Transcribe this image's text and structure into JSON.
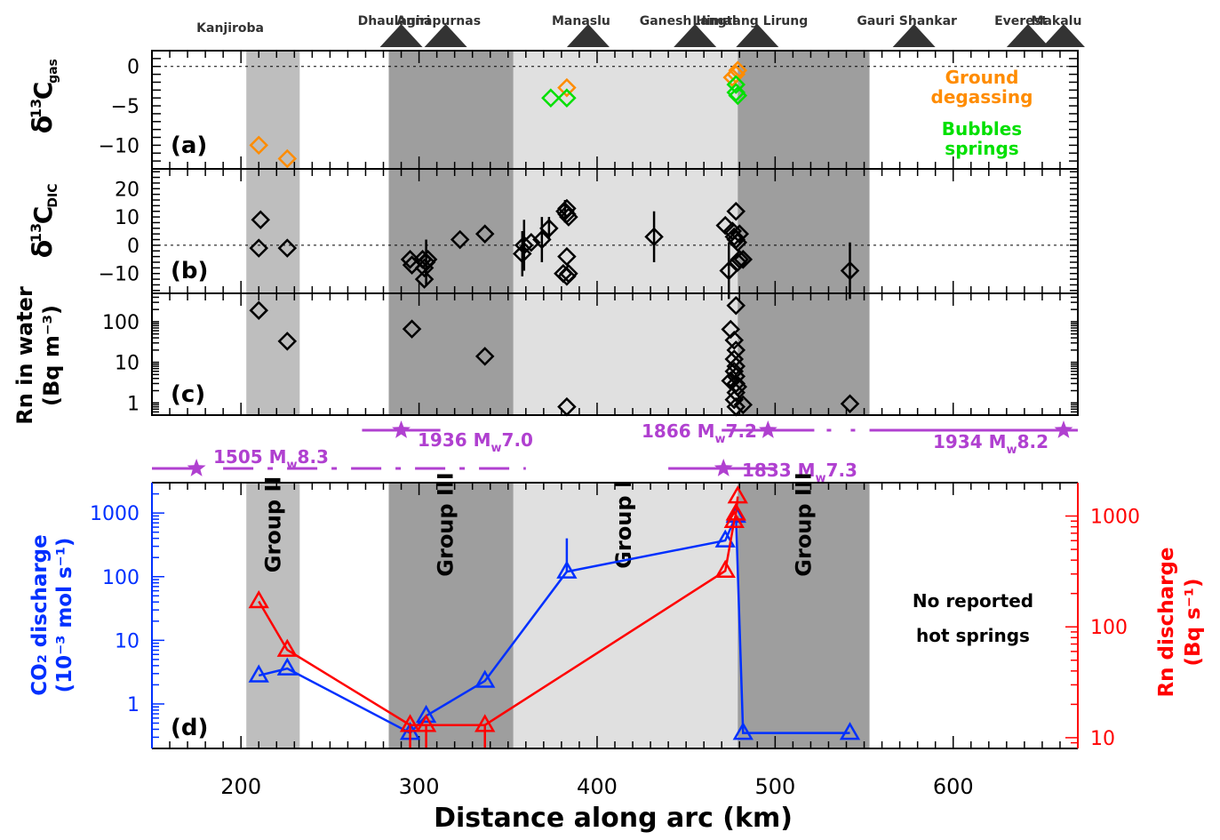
{
  "chart_data": {
    "type": "scatter",
    "xlabel": "Distance along arc (km)",
    "x_ticks": [
      "200",
      "300",
      "400",
      "500",
      "600"
    ],
    "xlim": [
      150,
      670
    ],
    "colors": {
      "ground_degassing": "#ff8c00",
      "bubbles_springs": "#00e000",
      "co2": "#0030ff",
      "rn": "#ff0000",
      "quake": "#b040d0",
      "band_light": "#e0e0e0",
      "band_mid": "#bebebe",
      "band_dark": "#9e9e9e",
      "mountain": "#333333"
    },
    "mountains": [
      {
        "name": "Kanjiroba",
        "x": 175,
        "peak": false
      },
      {
        "name": "Dhaulagiri",
        "x": 290,
        "peak": true
      },
      {
        "name": "Annapurnas",
        "x": 315,
        "peak": true
      },
      {
        "name": "Manaslu",
        "x": 395,
        "peak": true
      },
      {
        "name": "Ganesh Himal",
        "x": 455,
        "peak": true
      },
      {
        "name": "Langtang Lirung",
        "x": 490,
        "peak": true
      },
      {
        "name": "Gauri Shankar",
        "x": 578,
        "peak": true
      },
      {
        "name": "Everest",
        "x": 642,
        "peak": true
      },
      {
        "name": "Makalu",
        "x": 662,
        "peak": true
      }
    ],
    "bands": [
      {
        "x0": 203,
        "x1": 233,
        "shade": "mid"
      },
      {
        "x0": 283,
        "x1": 353,
        "shade": "dark"
      },
      {
        "x0": 353,
        "x1": 479,
        "shade": "light"
      },
      {
        "x0": 479,
        "x1": 553,
        "shade": "dark"
      }
    ],
    "groups": [
      {
        "label": "Group II",
        "x": 218
      },
      {
        "label": "Group III",
        "x": 315
      },
      {
        "label": "Group I",
        "x": 415
      },
      {
        "label": "Group III",
        "x": 516
      }
    ],
    "panel_a": {
      "panel_label": "(a)",
      "ylabel_main": "δ",
      "ylabel_sup": "13",
      "ylabel_sub": "C",
      "ylabel_subscript": "gas",
      "y_ticks": [
        "0",
        "−5",
        "−10"
      ],
      "ylim": [
        -13,
        2
      ],
      "ground_degassing_label_1": "Ground",
      "ground_degassing_label_2": "degassing",
      "bubbles_label_1": "Bubbles",
      "bubbles_label_2": "springs",
      "ground_degassing": [
        [
          210,
          -10
        ],
        [
          226,
          -11.7
        ],
        [
          383,
          -2.7
        ],
        [
          476,
          -1.4
        ],
        [
          479,
          -0.5
        ],
        [
          478,
          -1.0
        ]
      ],
      "bubbles": [
        [
          374,
          -4.0
        ],
        [
          383,
          -4.0
        ],
        [
          478,
          -2.3
        ],
        [
          478,
          -3.3
        ],
        [
          479,
          -3.7
        ]
      ]
    },
    "panel_b": {
      "panel_label": "(b)",
      "ylabel_main": "δ",
      "ylabel_sup": "13",
      "ylabel_sub": "C",
      "ylabel_subscript": "DIC",
      "y_ticks": [
        "20",
        "10",
        "0",
        "−10"
      ],
      "ylim": [
        -17,
        27
      ],
      "points": [
        [
          211,
          9,
          0
        ],
        [
          210,
          -1,
          0
        ],
        [
          226,
          -1,
          0
        ],
        [
          295,
          -5,
          0
        ],
        [
          296,
          -7,
          0
        ],
        [
          302,
          -5,
          0
        ],
        [
          303,
          -8,
          0
        ],
        [
          304,
          -6,
          8
        ],
        [
          305,
          -5,
          0
        ],
        [
          303,
          -12,
          0
        ],
        [
          323,
          2,
          0
        ],
        [
          337,
          4,
          0
        ],
        [
          358,
          -3,
          8
        ],
        [
          359,
          0,
          9
        ],
        [
          363,
          1,
          0
        ],
        [
          369,
          2,
          8
        ],
        [
          373,
          6,
          4
        ],
        [
          382,
          12,
          4
        ],
        [
          383,
          11,
          0
        ],
        [
          384,
          10,
          0
        ],
        [
          383,
          13,
          0
        ],
        [
          383,
          -4,
          0
        ],
        [
          381,
          -10,
          0
        ],
        [
          383,
          -11,
          0
        ],
        [
          384,
          -10,
          0
        ],
        [
          432,
          3,
          9
        ],
        [
          472,
          7,
          0
        ],
        [
          474,
          -9,
          10
        ],
        [
          476,
          5,
          0
        ],
        [
          478,
          12,
          0
        ],
        [
          477,
          3,
          0
        ],
        [
          478,
          2,
          0
        ],
        [
          479,
          1,
          0
        ],
        [
          480,
          4,
          0
        ],
        [
          479,
          -6,
          0
        ],
        [
          480,
          -5,
          0
        ],
        [
          482,
          -5,
          0
        ],
        [
          542,
          -9,
          10
        ]
      ]
    },
    "panel_c": {
      "panel_label": "(c)",
      "ylabel_1": "Rn in water",
      "ylabel_2": "(Bq m⁻³)",
      "y_ticks": [
        "100",
        "10",
        "1"
      ],
      "ylim": [
        0.5,
        500
      ],
      "points": [
        [
          210,
          190
        ],
        [
          226,
          33
        ],
        [
          296,
          66
        ],
        [
          337,
          14
        ],
        [
          383,
          0.8
        ],
        [
          475,
          65
        ],
        [
          478,
          250
        ],
        [
          477,
          35
        ],
        [
          478,
          20
        ],
        [
          477,
          12
        ],
        [
          478,
          8
        ],
        [
          477,
          6
        ],
        [
          478,
          4.5
        ],
        [
          475,
          3.5
        ],
        [
          478,
          3
        ],
        [
          479,
          2.5
        ],
        [
          478,
          1.8
        ],
        [
          477,
          1.2
        ],
        [
          478,
          0.8
        ],
        [
          482,
          0.9
        ],
        [
          542,
          0.95
        ]
      ]
    },
    "earthquakes": [
      {
        "label": "1505 M",
        "sub": "w",
        "mag": "8.3",
        "x": 175,
        "row": 2,
        "x0": 150,
        "x1": 175,
        "dashed_to": 360
      },
      {
        "label": "1936 M",
        "sub": "w",
        "mag": "7.0",
        "x": 290,
        "row": 1,
        "x0": 268,
        "x1": 312
      },
      {
        "label": "1866 M",
        "sub": "w",
        "mag": "7.2",
        "x": 496,
        "row": 1,
        "x0": 470,
        "x1": 522,
        "dotted_to": 547
      },
      {
        "label": "1833 M",
        "sub": "w",
        "mag": "7.3",
        "x": 471,
        "row": 2,
        "x0": 440,
        "x1": 500
      },
      {
        "label": "1934 M",
        "sub": "w",
        "mag": "8.2",
        "x": 662,
        "row": 1,
        "x0": 553,
        "x1": 670
      }
    ],
    "panel_d": {
      "panel_label": "(d)",
      "ylabel_left_1": "CO₂ discharge",
      "ylabel_left_2": "(10⁻³ mol s⁻¹)",
      "ylabel_right_1": "Rn discharge",
      "ylabel_right_2": "(Bq s⁻¹)",
      "y_ticks_left": [
        "1000",
        "100",
        "10",
        "1"
      ],
      "y_ticks_right": [
        "1000",
        "100",
        "10"
      ],
      "ylim_left": [
        0.2,
        3000
      ],
      "ylim_right": [
        8,
        2000
      ],
      "note_1": "No reported",
      "note_2": "hot springs",
      "co2": [
        [
          210,
          2.8,
          0
        ],
        [
          226,
          3.6,
          0
        ],
        [
          295,
          0.35,
          0
        ],
        [
          304,
          0.65,
          0
        ],
        [
          337,
          2.3,
          0
        ],
        [
          383,
          120,
          400
        ],
        [
          472,
          370,
          0
        ],
        [
          478,
          900,
          0
        ],
        [
          482,
          0.35,
          0
        ],
        [
          542,
          0.35,
          0
        ]
      ],
      "rn": [
        [
          210,
          170,
          0
        ],
        [
          226,
          62,
          0
        ],
        [
          295,
          13,
          10
        ],
        [
          304,
          13,
          10
        ],
        [
          337,
          13,
          10
        ],
        [
          472,
          320,
          0
        ],
        [
          477,
          900,
          0
        ],
        [
          478,
          1050,
          0
        ],
        [
          479,
          1500,
          0
        ]
      ]
    }
  }
}
